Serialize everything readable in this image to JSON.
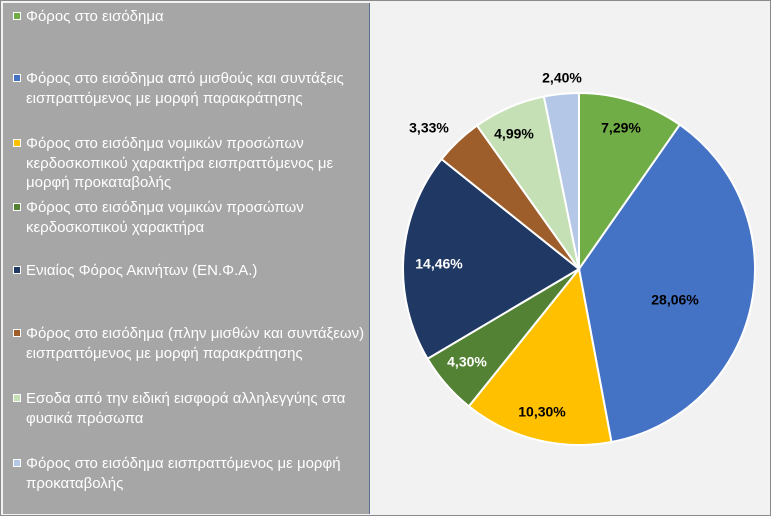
{
  "chart_data": {
    "type": "pie",
    "title": "",
    "slices": [
      {
        "name": "Φόρος στο εισόδημα",
        "value": 7.29,
        "label": "7,29%",
        "color": "#70ad47",
        "label_color": "#000000"
      },
      {
        "name": "Φόρος στο εισόδημα από μισθούς και συντάξεις εισπραττόμενος με μορφή παρακράτησης",
        "value": 28.06,
        "label": "28,06%",
        "color": "#4472c4",
        "label_color": "#000000"
      },
      {
        "name": "Φόρος στο εισόδημα νομικών προσώπων κερδοσκοπικού χαρακτήρα εισπραττόμενος με μορφή προκαταβολής",
        "value": 10.3,
        "label": "10,30%",
        "color": "#ffc000",
        "label_color": "#000000"
      },
      {
        "name": "Φόρος στο εισόδημα νομικών προσώπων κερδοσκοπικού χαρακτήρα",
        "value": 4.3,
        "label": "4,30%",
        "color": "#548235",
        "label_color": "#ffffff"
      },
      {
        "name": "Ενιαίος Φόρος Ακινήτων (ΕΝ.Φ.Α.)",
        "value": 14.46,
        "label": "14,46%",
        "color": "#203864",
        "label_color": "#ffffff"
      },
      {
        "name": "Φόρος στο εισόδημα  (πλην μισθών και συντάξεων) εισπραττόμενος με μορφή παρακράτησης",
        "value": 3.33,
        "label": "3,33%",
        "color": "#9e5e2b",
        "label_color": "#000000"
      },
      {
        "name": "Εσοδα από την ειδική εισφορά αλληλεγγύης στα φυσικά πρόσωπα",
        "value": 4.99,
        "label": "4,99%",
        "color": "#c5e0b4",
        "label_color": "#000000"
      },
      {
        "name": "Φόρος στο εισόδημα εισπραττόμενος με μορφή προκαταβολής",
        "value": 2.4,
        "label": "2,40%",
        "color": "#b4c7e7",
        "label_color": "#000000"
      }
    ],
    "legend_position": "left"
  }
}
